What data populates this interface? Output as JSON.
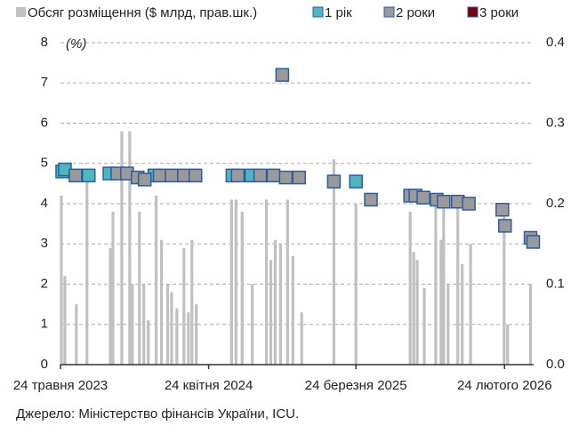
{
  "chart_data": {
    "type": "bar-scatter",
    "annotation": "(%)",
    "source": "Джерело: Міністерство фінансів України, ICU.",
    "xlim": [
      "2023-05-24",
      "2026-05-01"
    ],
    "xticks": [
      {
        "value": "2023-05-24",
        "label": "24 травня 2023"
      },
      {
        "value": "2024-04-24",
        "label": "24 квітня 2024"
      },
      {
        "value": "2025-03-24",
        "label": "24 березня 2025"
      },
      {
        "value": "2026-02-24",
        "label": "24 лютого 2026"
      }
    ],
    "ylim": [
      0,
      8
    ],
    "yticks": [
      0,
      1,
      2,
      3,
      4,
      5,
      6,
      7,
      8
    ],
    "y2lim": [
      0,
      0.4
    ],
    "y2ticks": [
      {
        "value": 0,
        "label": "0.0"
      },
      0.1,
      0.2,
      0.3,
      0.4
    ],
    "grid": true,
    "legend": "top",
    "series": [
      {
        "name": "Обсяг розміщення ($ млрд, прав.шк.)",
        "type": "bar",
        "axis": "y2",
        "color": "#c0c0c0",
        "x": [
          "2023-05-26",
          "2023-06-03",
          "2023-06-29",
          "2023-07-23",
          "2023-09-14",
          "2023-09-20",
          "2023-10-10",
          "2023-10-28",
          "2023-11-03",
          "2023-11-19",
          "2023-11-29",
          "2023-12-09",
          "2023-12-27",
          "2024-01-08",
          "2024-01-22",
          "2024-01-31",
          "2024-02-12",
          "2024-02-28",
          "2024-03-09",
          "2024-03-17",
          "2024-03-27",
          "2024-06-15",
          "2024-06-25",
          "2024-07-09",
          "2024-08-01",
          "2024-09-02",
          "2024-09-12",
          "2024-09-22",
          "2024-10-04",
          "2024-10-20",
          "2024-11-01",
          "2024-11-21",
          "2025-02-02",
          "2025-03-24",
          "2025-07-25",
          "2025-08-02",
          "2025-08-10",
          "2025-08-26",
          "2025-09-21",
          "2025-10-03",
          "2025-10-09",
          "2025-10-19",
          "2025-11-10",
          "2025-11-20",
          "2025-12-09",
          "2026-02-23",
          "2026-03-03",
          "2026-04-24"
        ],
        "values": [
          0.21,
          0.11,
          0.075,
          0.235,
          0.145,
          0.19,
          0.29,
          0.29,
          0.1,
          0.19,
          0.1,
          0.055,
          0.21,
          0.155,
          0.1,
          0.09,
          0.07,
          0.145,
          0.065,
          0.155,
          0.075,
          0.205,
          0.205,
          0.19,
          0.1,
          0.205,
          0.13,
          0.155,
          0.15,
          0.205,
          0.135,
          0.065,
          0.255,
          0.2,
          0.19,
          0.14,
          0.13,
          0.095,
          0.205,
          0.155,
          0.21,
          0.1,
          0.2,
          0.125,
          0.15,
          0.2,
          0.05,
          0.1
        ]
      },
      {
        "name": "1 рік",
        "type": "scatter",
        "color": "#4fb6c0",
        "x": [
          "2023-05-28",
          "2023-06-03",
          "2023-07-27",
          "2023-09-12",
          "2023-12-23",
          "2024-06-17",
          "2024-07-30",
          "2025-03-24"
        ],
        "values": [
          4.8,
          4.85,
          4.7,
          4.75,
          4.7,
          4.7,
          4.7,
          4.55
        ]
      },
      {
        "name": "2 роки",
        "type": "scatter",
        "color": "#9a9a9a",
        "x": [
          "2023-06-27",
          "2023-09-30",
          "2023-10-22",
          "2023-11-15",
          "2023-12-01",
          "2024-01-04",
          "2024-01-31",
          "2024-02-28",
          "2024-03-25",
          "2024-06-29",
          "2024-08-19",
          "2024-09-18",
          "2024-10-08",
          "2024-10-16",
          "2024-11-15",
          "2025-02-02",
          "2025-04-27",
          "2025-07-25",
          "2025-08-06",
          "2025-08-24",
          "2025-09-23",
          "2025-10-09",
          "2025-11-10",
          "2025-12-05",
          "2026-02-19",
          "2026-02-25",
          "2026-04-24",
          "2026-04-30"
        ],
        "values": [
          4.7,
          4.75,
          4.75,
          4.65,
          4.6,
          4.7,
          4.7,
          4.7,
          4.7,
          4.7,
          4.7,
          4.7,
          7.2,
          4.65,
          4.65,
          4.55,
          4.1,
          4.2,
          4.2,
          4.15,
          4.1,
          4.05,
          4.05,
          4.0,
          3.85,
          3.45,
          3.15,
          3.05
        ]
      },
      {
        "name": "3 роки",
        "type": "scatter",
        "color": "#7a0010",
        "x": [],
        "values": []
      }
    ]
  }
}
